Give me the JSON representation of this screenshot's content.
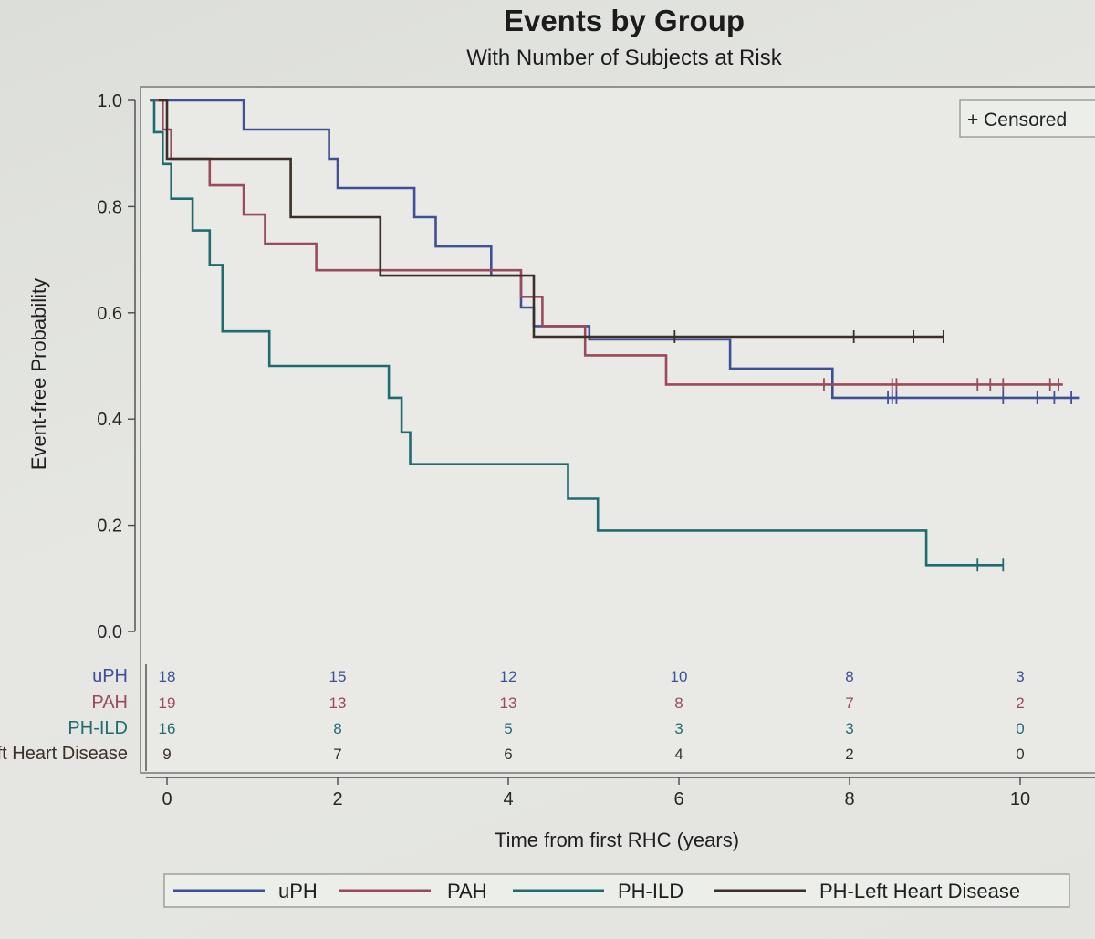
{
  "chart_data": {
    "type": "line",
    "title": "Events by Group",
    "subtitle": "With Number of Subjects at Risk",
    "xlabel": "Time from first RHC (years)",
    "ylabel": "Event-free Probability",
    "xlim": [
      -0.1,
      10.7
    ],
    "ylim": [
      0,
      1.0
    ],
    "xticks": [
      0,
      2,
      4,
      6,
      8,
      10
    ],
    "yticks": [
      0.0,
      0.2,
      0.4,
      0.6,
      0.8,
      1.0
    ],
    "grid": false,
    "censored_legend": "+ Censored",
    "legend_position": "bottom",
    "series": [
      {
        "name": "uPH",
        "color": "#3f4f98",
        "steps": [
          [
            -0.2,
            1.0
          ],
          [
            0.9,
            1.0
          ],
          [
            0.9,
            0.945
          ],
          [
            1.9,
            0.945
          ],
          [
            1.9,
            0.89
          ],
          [
            2.0,
            0.89
          ],
          [
            2.0,
            0.835
          ],
          [
            2.9,
            0.835
          ],
          [
            2.9,
            0.78
          ],
          [
            3.15,
            0.78
          ],
          [
            3.15,
            0.725
          ],
          [
            3.8,
            0.725
          ],
          [
            3.8,
            0.67
          ],
          [
            4.15,
            0.67
          ],
          [
            4.15,
            0.61
          ],
          [
            4.3,
            0.61
          ],
          [
            4.3,
            0.575
          ],
          [
            4.95,
            0.575
          ],
          [
            4.95,
            0.55
          ],
          [
            6.6,
            0.55
          ],
          [
            6.6,
            0.495
          ],
          [
            7.8,
            0.495
          ],
          [
            7.8,
            0.44
          ],
          [
            10.7,
            0.44
          ]
        ],
        "censored": [
          [
            8.45,
            0.44
          ],
          [
            8.5,
            0.44
          ],
          [
            8.55,
            0.44
          ],
          [
            9.8,
            0.44
          ],
          [
            10.2,
            0.44
          ],
          [
            10.4,
            0.44
          ],
          [
            10.6,
            0.44
          ]
        ],
        "at_risk": [
          18,
          15,
          12,
          10,
          8,
          3
        ]
      },
      {
        "name": "PAH",
        "color": "#9a4a5a",
        "steps": [
          [
            -0.2,
            1.0
          ],
          [
            -0.05,
            1.0
          ],
          [
            -0.05,
            0.945
          ],
          [
            0.05,
            0.945
          ],
          [
            0.05,
            0.89
          ],
          [
            0.5,
            0.89
          ],
          [
            0.5,
            0.84
          ],
          [
            0.9,
            0.84
          ],
          [
            0.9,
            0.785
          ],
          [
            1.15,
            0.785
          ],
          [
            1.15,
            0.73
          ],
          [
            1.75,
            0.73
          ],
          [
            1.75,
            0.68
          ],
          [
            4.15,
            0.68
          ],
          [
            4.15,
            0.63
          ],
          [
            4.4,
            0.63
          ],
          [
            4.4,
            0.575
          ],
          [
            4.9,
            0.575
          ],
          [
            4.9,
            0.52
          ],
          [
            5.85,
            0.52
          ],
          [
            5.85,
            0.465
          ],
          [
            10.5,
            0.465
          ]
        ],
        "censored": [
          [
            7.7,
            0.465
          ],
          [
            8.5,
            0.465
          ],
          [
            8.55,
            0.465
          ],
          [
            9.5,
            0.465
          ],
          [
            9.65,
            0.465
          ],
          [
            9.8,
            0.465
          ],
          [
            10.35,
            0.465
          ],
          [
            10.45,
            0.465
          ]
        ],
        "at_risk": [
          19,
          13,
          13,
          8,
          7,
          2
        ]
      },
      {
        "name": "PH-ILD",
        "color": "#1f6c70",
        "steps": [
          [
            -0.2,
            1.0
          ],
          [
            -0.15,
            1.0
          ],
          [
            -0.15,
            0.94
          ],
          [
            -0.05,
            0.94
          ],
          [
            -0.05,
            0.88
          ],
          [
            0.05,
            0.88
          ],
          [
            0.05,
            0.815
          ],
          [
            0.3,
            0.815
          ],
          [
            0.3,
            0.755
          ],
          [
            0.5,
            0.755
          ],
          [
            0.5,
            0.69
          ],
          [
            0.65,
            0.69
          ],
          [
            0.65,
            0.565
          ],
          [
            1.2,
            0.565
          ],
          [
            1.2,
            0.5
          ],
          [
            2.6,
            0.5
          ],
          [
            2.6,
            0.44
          ],
          [
            2.75,
            0.44
          ],
          [
            2.75,
            0.375
          ],
          [
            2.85,
            0.375
          ],
          [
            2.85,
            0.315
          ],
          [
            4.7,
            0.315
          ],
          [
            4.7,
            0.25
          ],
          [
            5.05,
            0.25
          ],
          [
            5.05,
            0.19
          ],
          [
            8.9,
            0.19
          ],
          [
            8.9,
            0.125
          ],
          [
            9.8,
            0.125
          ]
        ],
        "censored": [
          [
            9.5,
            0.125
          ],
          [
            9.8,
            0.125
          ]
        ],
        "at_risk": [
          16,
          8,
          5,
          3,
          3,
          0
        ]
      },
      {
        "name": "PH-Left Heart Disease",
        "color": "#3b2f27",
        "steps": [
          [
            -0.1,
            1.0
          ],
          [
            0.0,
            1.0
          ],
          [
            0.0,
            0.89
          ],
          [
            1.45,
            0.89
          ],
          [
            1.45,
            0.78
          ],
          [
            2.5,
            0.78
          ],
          [
            2.5,
            0.67
          ],
          [
            4.3,
            0.67
          ],
          [
            4.3,
            0.555
          ],
          [
            9.1,
            0.555
          ]
        ],
        "censored": [
          [
            5.95,
            0.555
          ],
          [
            8.05,
            0.555
          ],
          [
            8.75,
            0.555
          ],
          [
            9.1,
            0.555
          ]
        ],
        "at_risk": [
          9,
          7,
          6,
          4,
          2,
          0
        ]
      }
    ],
    "at_risk_times": [
      0,
      2,
      4,
      6,
      8,
      10
    ]
  }
}
